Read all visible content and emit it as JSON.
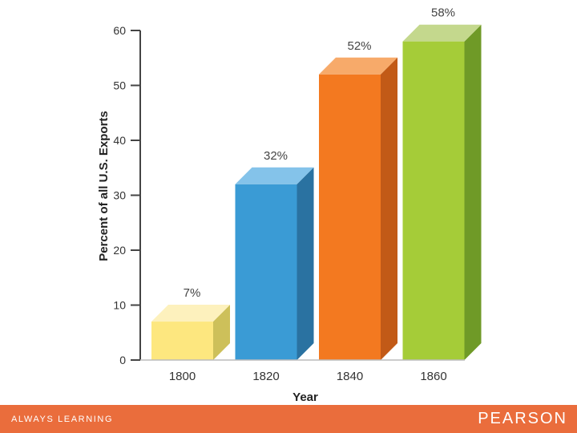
{
  "chart_data": {
    "type": "bar",
    "categories": [
      "1800",
      "1820",
      "1840",
      "1860"
    ],
    "values": [
      7,
      32,
      52,
      58
    ],
    "value_labels": [
      "7%",
      "32%",
      "52%",
      "58%"
    ],
    "xlabel": "Year",
    "ylabel": "Percent of all U.S. Exports",
    "ylim": [
      0,
      60
    ],
    "yticks": [
      "0",
      "10",
      "20",
      "30",
      "40",
      "50",
      "60"
    ],
    "grid": false,
    "bar_colors": [
      {
        "front": "#fde77f",
        "top": "#fdf1bd",
        "side": "#cdc05a"
      },
      {
        "front": "#3a9bd5",
        "top": "#84c3ea",
        "side": "#2a72a1"
      },
      {
        "front": "#f37920",
        "top": "#f7aa6a",
        "side": "#c25a17"
      },
      {
        "front": "#a5cc38",
        "top": "#c4d88d",
        "side": "#6f9a27"
      }
    ]
  },
  "footer": {
    "left_text": "ALWAYS LEARNING",
    "right_text": "PEARSON",
    "color": "#ea6d3c"
  }
}
